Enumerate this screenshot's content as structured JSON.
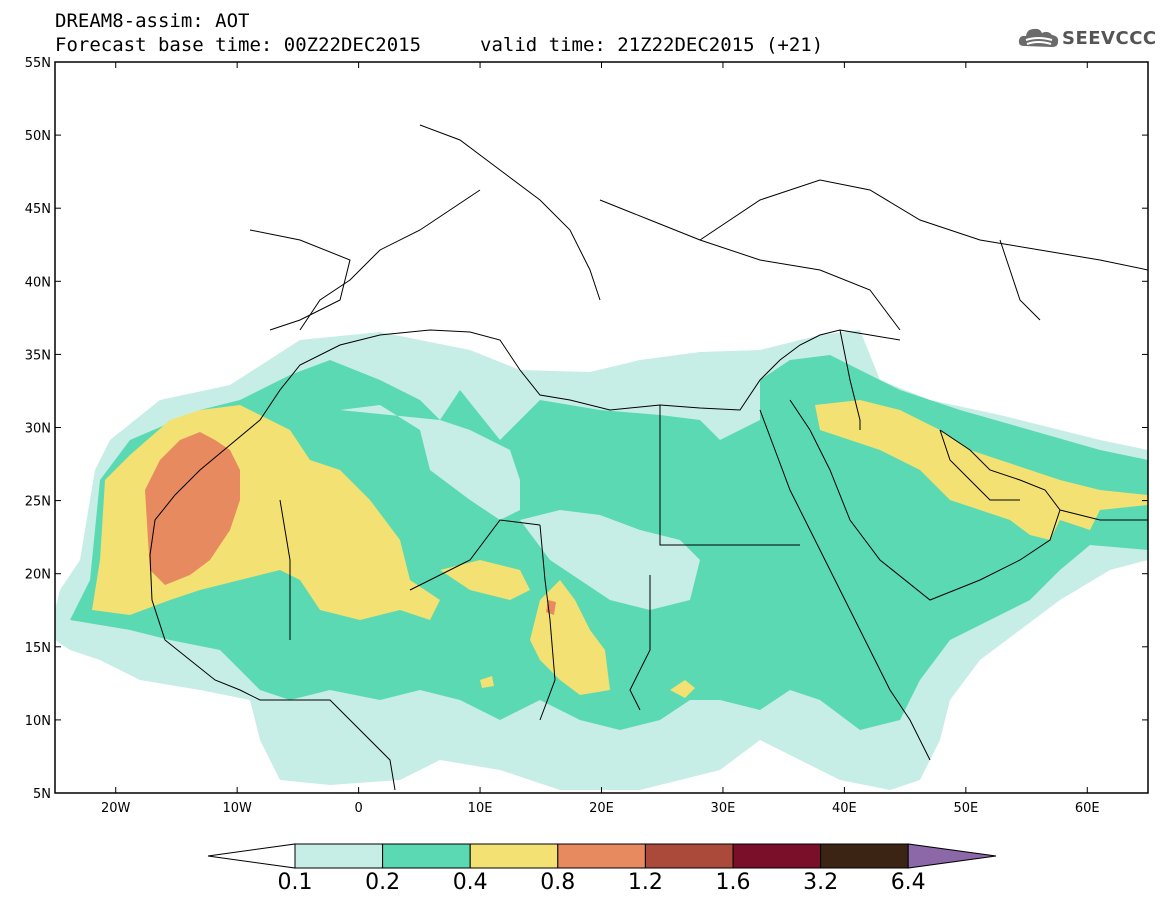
{
  "header": {
    "title": "DREAM8-assim: AOT",
    "base_time": "Forecast base time: 00Z22DEC2015",
    "valid_time": "valid time: 21Z22DEC2015 (+21)",
    "logo_text": "SEEVCCC",
    "logo_icon": "cloud-icon"
  },
  "map": {
    "lon_range": [
      -25,
      65
    ],
    "lat_range": [
      5,
      55
    ],
    "lat_labels": [
      "5N",
      "10N",
      "15N",
      "20N",
      "25N",
      "30N",
      "35N",
      "40N",
      "45N",
      "50N",
      "55N"
    ],
    "lon_labels": [
      "20W",
      "10W",
      "0",
      "10E",
      "20E",
      "30E",
      "40E",
      "50E",
      "60E"
    ],
    "lat_values": [
      5,
      10,
      15,
      20,
      25,
      30,
      35,
      40,
      45,
      50,
      55
    ],
    "lon_values": [
      -20,
      -10,
      0,
      10,
      20,
      30,
      40,
      50,
      60
    ]
  },
  "colorbar": {
    "thresholds": [
      "0.1",
      "0.2",
      "0.4",
      "0.8",
      "1.2",
      "1.6",
      "3.2",
      "6.4"
    ],
    "colors": [
      "#ffffff",
      "#c6eee6",
      "#5ad9b2",
      "#f3e173",
      "#e88a5f",
      "#ab4a3b",
      "#7a0f2a",
      "#3b2414",
      "#8d68a8"
    ]
  },
  "colors": {
    "aot_0_1": "#c6eee6",
    "aot_0_2": "#5ad9b2",
    "aot_0_4": "#f3e173",
    "aot_0_8": "#e88a5f",
    "aot_1_2": "#ab4a3b"
  }
}
